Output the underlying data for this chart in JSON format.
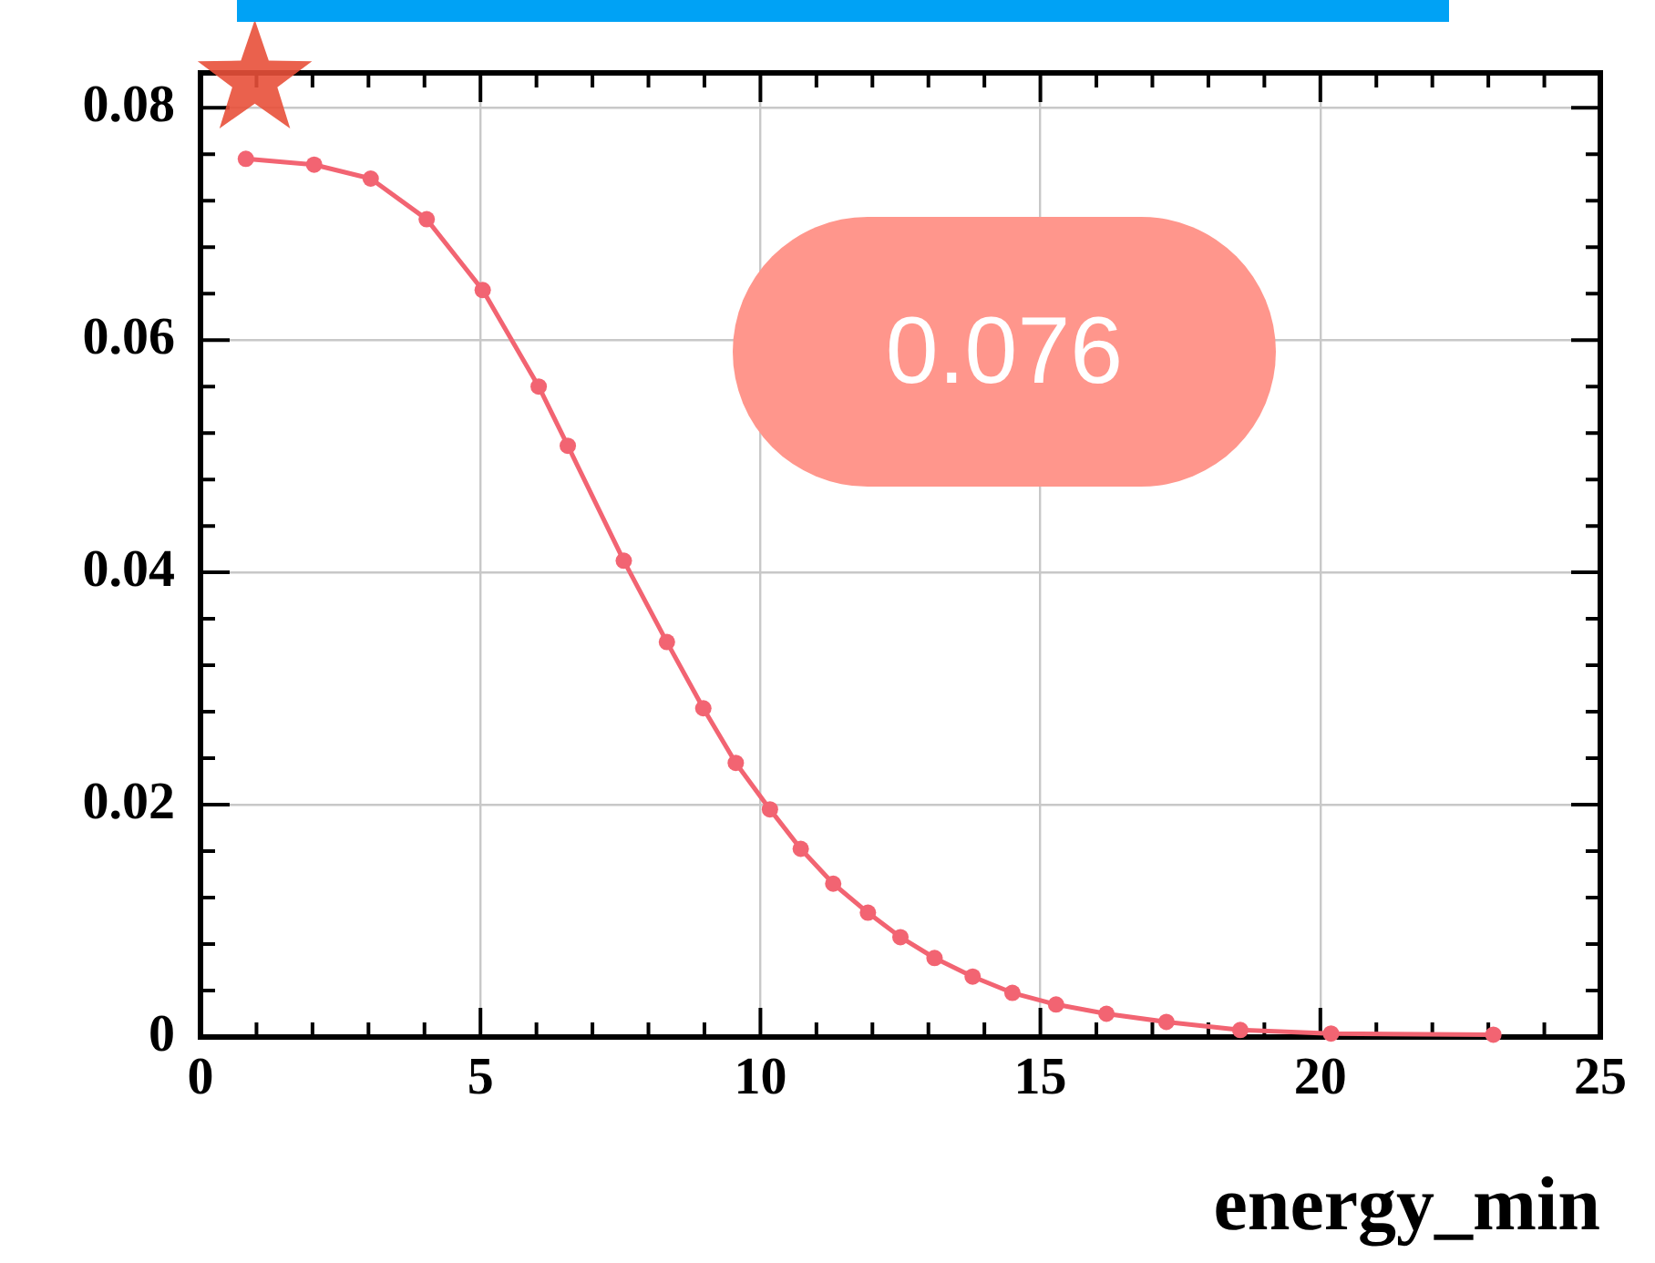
{
  "chart_data": {
    "type": "line",
    "xlabel": "energy_min",
    "annotations": [
      "0.076"
    ],
    "series": [
      {
        "color": "#f26472",
        "marker": "circle",
        "x": [
          0.81,
          2.03,
          3.04,
          4.04,
          5.04,
          6.04,
          6.56,
          7.56,
          8.33,
          8.98,
          9.56,
          10.17,
          10.72,
          11.3,
          11.92,
          12.5,
          13.11,
          13.79,
          14.5,
          15.28,
          16.18,
          17.25,
          18.57,
          20.19,
          23.09
        ],
        "values": [
          0.0756,
          0.0751,
          0.0739,
          0.0704,
          0.0643,
          0.056,
          0.0509,
          0.041,
          0.034,
          0.0283,
          0.0236,
          0.0196,
          0.0162,
          0.0132,
          0.0107,
          0.0086,
          0.0068,
          0.0052,
          0.0038,
          0.0028,
          0.002,
          0.0013,
          0.0006,
          0.0003,
          0.0002
        ]
      },
      {
        "type": "scatter",
        "color": "#e8503a",
        "marker": "star",
        "x": [
          0.97
        ],
        "values": [
          0.0824
        ]
      }
    ],
    "xlim": [
      0,
      25
    ],
    "xticks": [
      0,
      5,
      10,
      15,
      20,
      25
    ],
    "ylim": [
      0,
      0.083
    ],
    "yticks": [
      {
        "value": 0,
        "label": "0"
      },
      {
        "value": 0.02,
        "label": "0.02"
      },
      {
        "value": 0.04,
        "label": "0.04"
      },
      {
        "value": 0.06,
        "label": "0.06"
      },
      {
        "value": 0.08,
        "label": "0.08"
      }
    ],
    "grid": true,
    "line_style": "solid"
  }
}
